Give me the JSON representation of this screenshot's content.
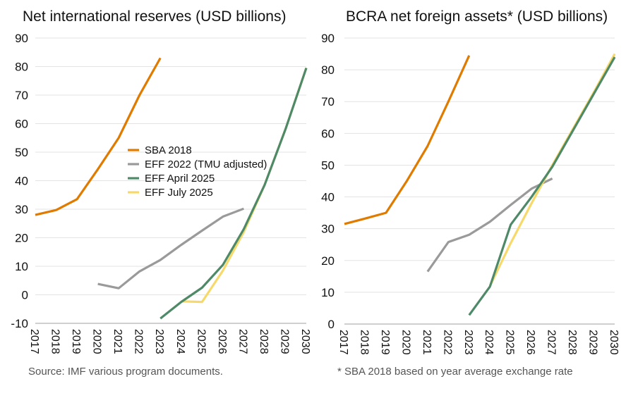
{
  "colors": {
    "sba2018": "#E07B00",
    "eff2022": "#9A9A9A",
    "effApr2025": "#4E8A68",
    "effJul2025": "#F7D96B",
    "grid": "#E3E3E3",
    "axis": "#BFBFBF",
    "text": "#111111",
    "note": "#555555"
  },
  "chart_data": [
    {
      "type": "line",
      "title": "Net international reserves (USD billions)",
      "xlabel": "",
      "ylabel": "",
      "x": [
        2017,
        2018,
        2019,
        2020,
        2021,
        2022,
        2023,
        2024,
        2025,
        2026,
        2027,
        2028,
        2029,
        2030
      ],
      "yticks": [
        -10,
        0,
        10,
        20,
        30,
        40,
        50,
        60,
        70,
        80,
        90
      ],
      "ylim": [
        -10,
        90
      ],
      "grid": true,
      "legend": "center",
      "note": "Source: IMF various program documents.",
      "series": [
        {
          "key": "sba2018",
          "name": "SBA 2018",
          "values": [
            28,
            29.7,
            33.5,
            44,
            55,
            70,
            83,
            null,
            null,
            null,
            null,
            null,
            null,
            null
          ]
        },
        {
          "key": "eff2022",
          "name": "EFF 2022 (TMU adjusted)",
          "values": [
            null,
            null,
            null,
            3.8,
            2.3,
            8.2,
            12.2,
            17.5,
            22.5,
            27.4,
            30.2,
            null,
            null,
            null
          ]
        },
        {
          "key": "effJul2025",
          "name": "EFF July 2025",
          "values": [
            null,
            null,
            null,
            null,
            null,
            null,
            null,
            -2.3,
            -2.5,
            8.5,
            22,
            38.5,
            58,
            79.5
          ]
        },
        {
          "key": "effApr2025",
          "name": "EFF April 2025",
          "values": [
            null,
            null,
            null,
            null,
            null,
            null,
            -8.3,
            -2.5,
            2.5,
            10.5,
            23,
            38.5,
            58,
            79.5
          ]
        }
      ],
      "legend_order": [
        "sba2018",
        "eff2022",
        "effApr2025",
        "effJul2025"
      ]
    },
    {
      "type": "line",
      "title": "BCRA net foreign assets* (USD billions)",
      "xlabel": "",
      "ylabel": "",
      "x": [
        2017,
        2018,
        2019,
        2020,
        2021,
        2022,
        2023,
        2024,
        2025,
        2026,
        2027,
        2028,
        2029,
        2030
      ],
      "yticks": [
        0,
        10,
        20,
        30,
        40,
        50,
        60,
        70,
        80,
        90
      ],
      "ylim": [
        0,
        90
      ],
      "grid": true,
      "note": "* SBA 2018 based on year average exchange rate",
      "series": [
        {
          "key": "sba2018",
          "name": "SBA 2018",
          "values": [
            31.5,
            33.2,
            35,
            45,
            56,
            70,
            84.5,
            null,
            null,
            null,
            null,
            null,
            null,
            null
          ]
        },
        {
          "key": "eff2022",
          "name": "EFF 2022 (TMU adjusted)",
          "values": [
            null,
            null,
            null,
            null,
            16.5,
            25.8,
            28.1,
            32.2,
            37.5,
            42.6,
            45.8,
            null,
            null,
            null
          ]
        },
        {
          "key": "effJul2025",
          "name": "EFF July 2025",
          "values": [
            null,
            null,
            null,
            null,
            null,
            null,
            null,
            12,
            25.5,
            38,
            50,
            61.5,
            73,
            85
          ]
        },
        {
          "key": "effApr2025",
          "name": "EFF April 2025",
          "values": [
            null,
            null,
            null,
            null,
            null,
            null,
            2.8,
            11.8,
            31.3,
            40,
            49.5,
            61,
            72.5,
            84
          ]
        }
      ]
    }
  ]
}
